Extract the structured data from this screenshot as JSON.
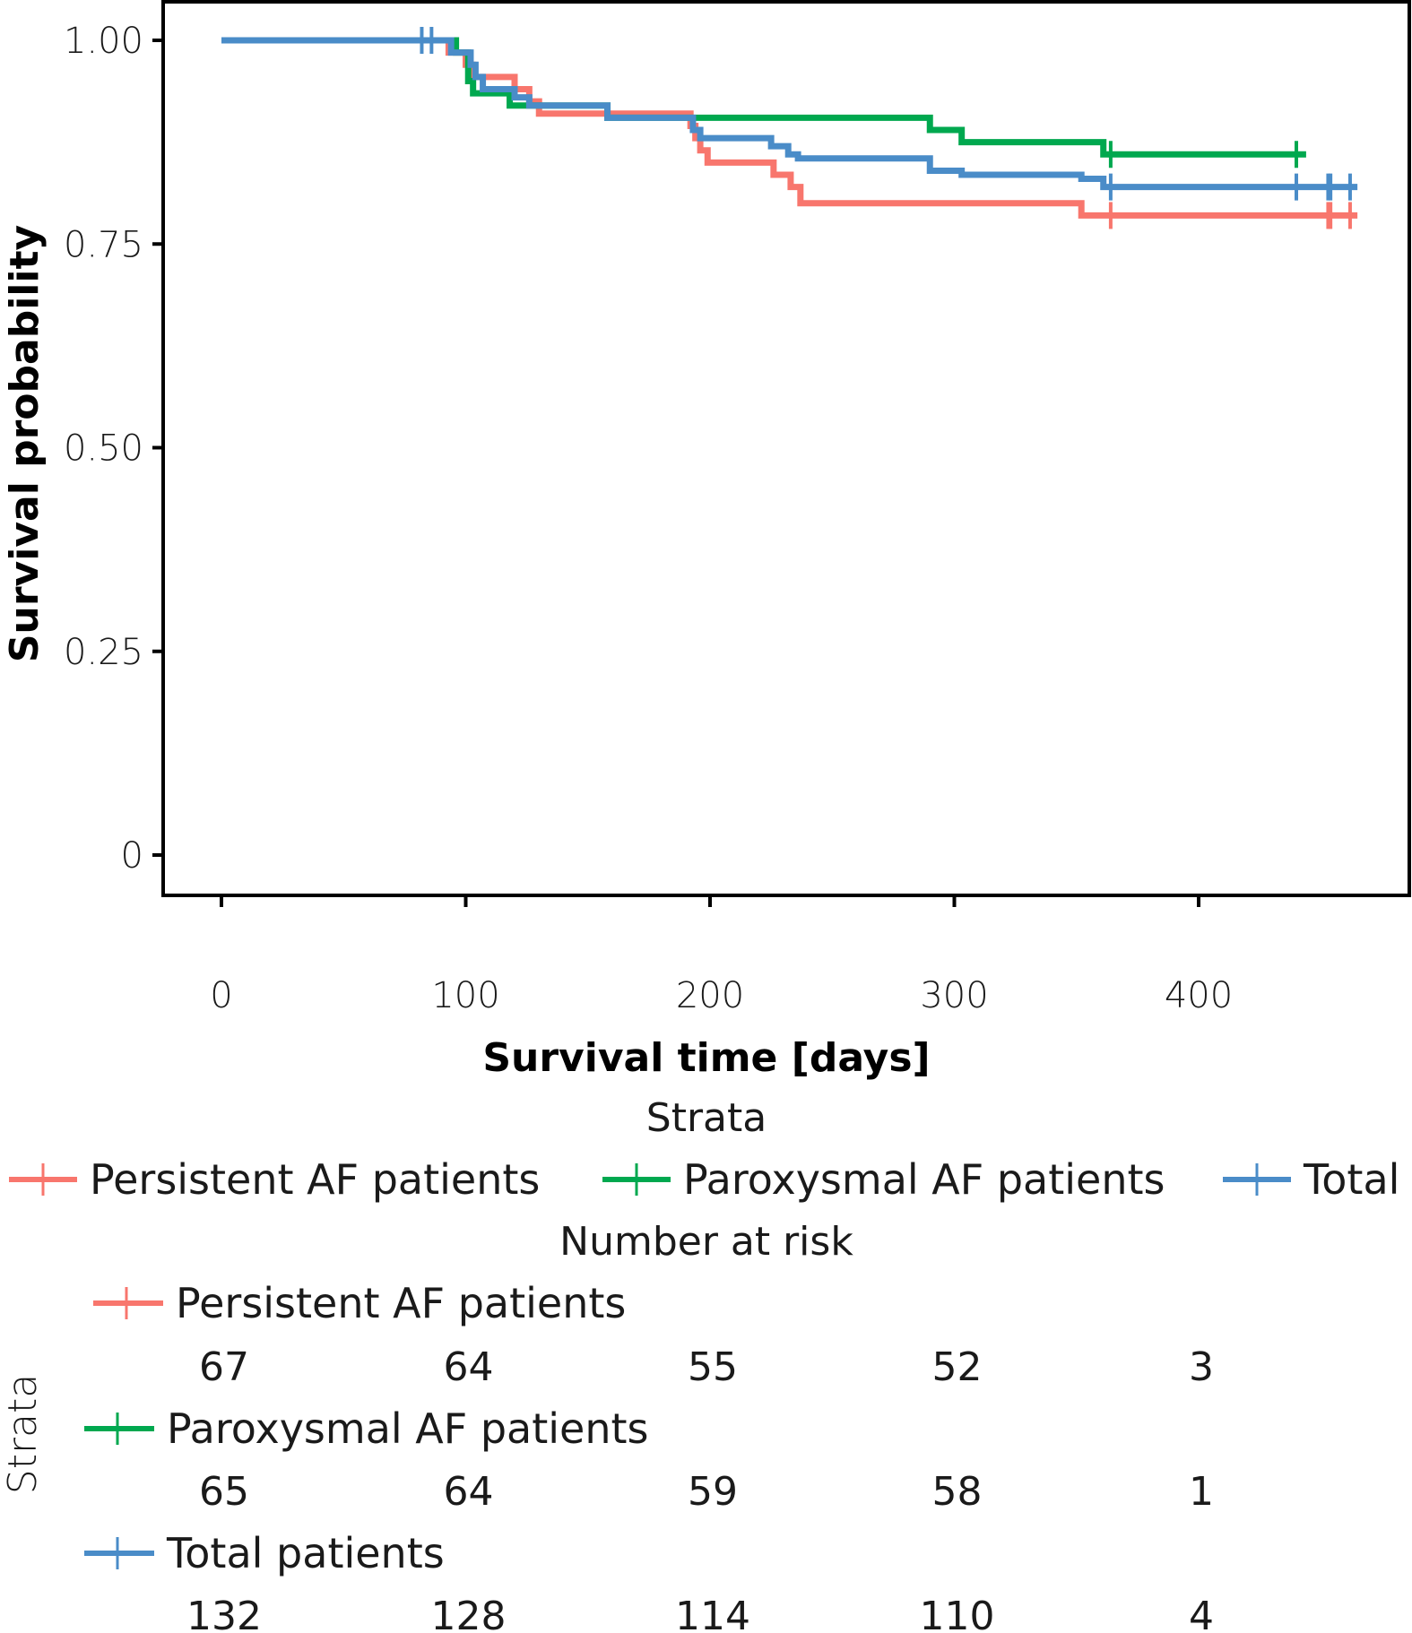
{
  "chart_data": {
    "type": "line",
    "subtype": "kaplan-meier step",
    "title": "",
    "xlabel": "Survival time [days]",
    "ylabel": "Survival probability",
    "xlim": [
      -25,
      480
    ],
    "ylim": [
      -0.05,
      1.05
    ],
    "x_ticks": [
      0,
      100,
      200,
      300,
      400
    ],
    "x_tick_labels": [
      "0",
      "100",
      "200",
      "300",
      "400"
    ],
    "y_ticks": [
      0,
      0.25,
      0.5,
      0.75,
      1.0
    ],
    "y_tick_labels": [
      "0",
      "0.25",
      "0.50",
      "0.75",
      "1.00"
    ],
    "grid": false,
    "legend": {
      "title": "Strata",
      "placement": "bottom",
      "entries": [
        "Persistent AF patients",
        "Paroxysmal AF patients",
        "Total"
      ]
    },
    "series": [
      {
        "name": "Persistent AF patients",
        "color": "#F8766D",
        "steps": [
          [
            0,
            1.0
          ],
          [
            93,
            0.985
          ],
          [
            100,
            0.97
          ],
          [
            103,
            0.955
          ],
          [
            120,
            0.94
          ],
          [
            126,
            0.925
          ],
          [
            130,
            0.91
          ],
          [
            192,
            0.895
          ],
          [
            194,
            0.88
          ],
          [
            196,
            0.865
          ],
          [
            199,
            0.85
          ],
          [
            226,
            0.835
          ],
          [
            233,
            0.82
          ],
          [
            237,
            0.8
          ],
          [
            352,
            0.785
          ],
          [
            465,
            0.785
          ]
        ],
        "censor_times": [
          364,
          453,
          454,
          462
        ]
      },
      {
        "name": "Paroxysmal AF patients",
        "color": "#00A84F",
        "steps": [
          [
            0,
            1.0
          ],
          [
            96,
            0.985
          ],
          [
            101,
            0.95
          ],
          [
            103,
            0.935
          ],
          [
            118,
            0.92
          ],
          [
            158,
            0.905
          ],
          [
            290,
            0.89
          ],
          [
            303,
            0.875
          ],
          [
            361,
            0.86
          ],
          [
            444,
            0.86
          ]
        ],
        "censor_times": [
          364,
          440
        ]
      },
      {
        "name": "Total",
        "color": "#4A8CC8",
        "steps": [
          [
            0,
            1.0
          ],
          [
            94,
            0.985
          ],
          [
            102,
            0.97
          ],
          [
            104,
            0.955
          ],
          [
            107,
            0.94
          ],
          [
            120,
            0.93
          ],
          [
            126,
            0.92
          ],
          [
            158,
            0.905
          ],
          [
            193,
            0.89
          ],
          [
            196,
            0.88
          ],
          [
            225,
            0.87
          ],
          [
            232,
            0.86
          ],
          [
            236,
            0.855
          ],
          [
            290,
            0.84
          ],
          [
            303,
            0.835
          ],
          [
            352,
            0.83
          ],
          [
            361,
            0.82
          ],
          [
            465,
            0.82
          ]
        ],
        "censor_times": [
          82,
          86,
          364,
          440,
          453,
          454,
          462
        ]
      }
    ],
    "risk_table": {
      "title": "Number at risk",
      "y_axis_label": "Strata",
      "times": [
        0,
        100,
        200,
        300,
        400
      ],
      "rows": [
        {
          "name": "Persistent AF patients",
          "color": "#F8766D",
          "values": [
            67,
            64,
            55,
            52,
            3
          ]
        },
        {
          "name": "Paroxysmal AF patients",
          "color": "#00A84F",
          "values": [
            65,
            64,
            59,
            58,
            1
          ]
        },
        {
          "name": "Total patients",
          "color": "#4A8CC8",
          "values": [
            132,
            128,
            114,
            110,
            4
          ]
        }
      ]
    }
  }
}
